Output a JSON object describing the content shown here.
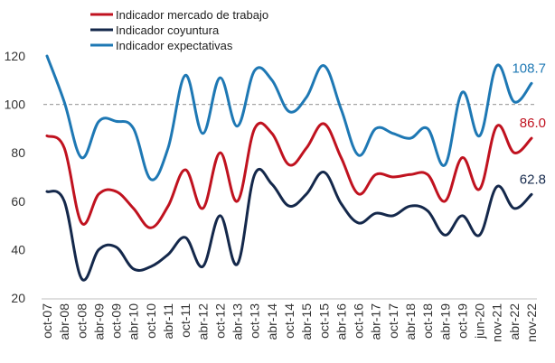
{
  "chart_data": {
    "type": "line",
    "title": "",
    "xlabel": "",
    "ylabel": "",
    "ylim": [
      20,
      130
    ],
    "yticks": [
      20,
      40,
      60,
      80,
      100,
      120
    ],
    "grid": false,
    "reference_line": 100,
    "legend_position": "top-left",
    "x_labels": [
      "oct-07",
      "abr-08",
      "oct-08",
      "abr-09",
      "oct-09",
      "abr-10",
      "oct-10",
      "abr-11",
      "oct-11",
      "abr-12",
      "oct-12",
      "abr-13",
      "oct-13",
      "abr-14",
      "oct-14",
      "abr-15",
      "oct-15",
      "abr-16",
      "oct-16",
      "abr-17",
      "oct-17",
      "abr-18",
      "oct-18",
      "abr-19",
      "oct-19",
      "jun-20",
      "nov-21",
      "abr-22",
      "nov-22"
    ],
    "series": [
      {
        "name": "Indicador mercado de trabajo",
        "color": "#c0121f",
        "end_label": "86.0",
        "values": [
          87,
          82,
          51,
          63,
          64,
          57,
          49,
          58,
          73,
          57,
          80,
          60,
          90,
          88,
          75,
          82,
          92,
          78,
          63,
          71,
          70,
          71,
          71,
          60,
          78,
          65,
          91,
          80,
          86.0
        ]
      },
      {
        "name": "Indicador coyuntura",
        "color": "#14284b",
        "end_label": "62.8",
        "values": [
          64,
          60,
          28,
          40,
          41,
          32,
          33,
          38,
          45,
          33,
          54,
          34,
          71,
          67,
          58,
          63,
          72,
          59,
          51,
          55,
          54,
          58,
          56,
          46,
          54,
          46,
          66,
          57,
          62.8
        ]
      },
      {
        "name": "Indicador expectativas",
        "color": "#1e78b4",
        "end_label": "108.7",
        "values": [
          120,
          101,
          78,
          93,
          93,
          90,
          69,
          82,
          112,
          88,
          111,
          91,
          114,
          110,
          97,
          103,
          116,
          98,
          79,
          90,
          88,
          86,
          90,
          75,
          105,
          87,
          116,
          101,
          108.7
        ]
      }
    ]
  }
}
